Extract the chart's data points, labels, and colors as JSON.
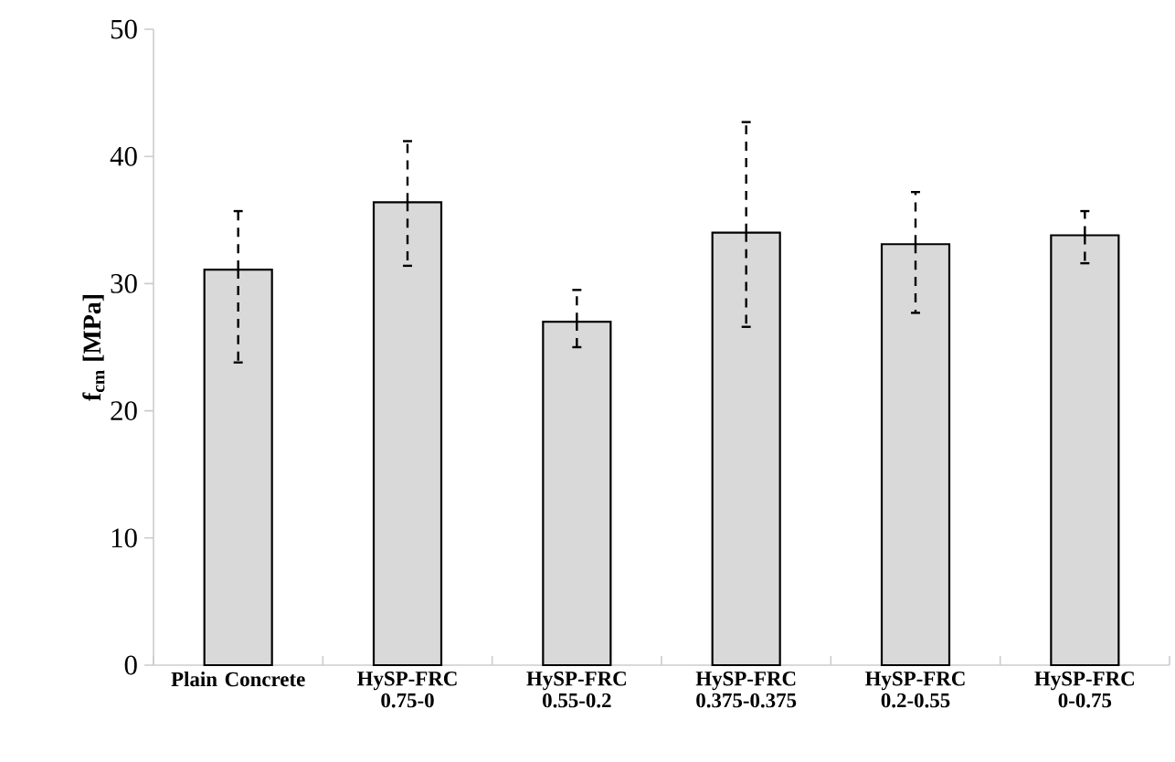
{
  "chart_data": {
    "type": "bar",
    "ylabel": "**f$_{cm}$ [MPa]**",
    "categories": [
      "Plain Concrete",
      "HySP-FRC 0.75-0",
      "HySP-FRC 0.55-0.2",
      "HySP-FRC 0.375-0.375",
      "HySP-FRC 0.2-0.55",
      "HySP-FRC 0-0.75"
    ],
    "values": [
      31.1,
      36.4,
      27.0,
      34.0,
      33.1,
      33.8
    ],
    "errors": [
      [
        23.8,
        35.7
      ],
      [
        31.4,
        41.2
      ],
      [
        25.0,
        29.5
      ],
      [
        26.6,
        42.7
      ],
      [
        27.7,
        37.2
      ],
      [
        31.6,
        35.7
      ]
    ],
    "color": "#d9d9d9",
    "ylim": [
      0,
      50
    ],
    "yticks": [
      0,
      10,
      20,
      30,
      40,
      50
    ]
  }
}
